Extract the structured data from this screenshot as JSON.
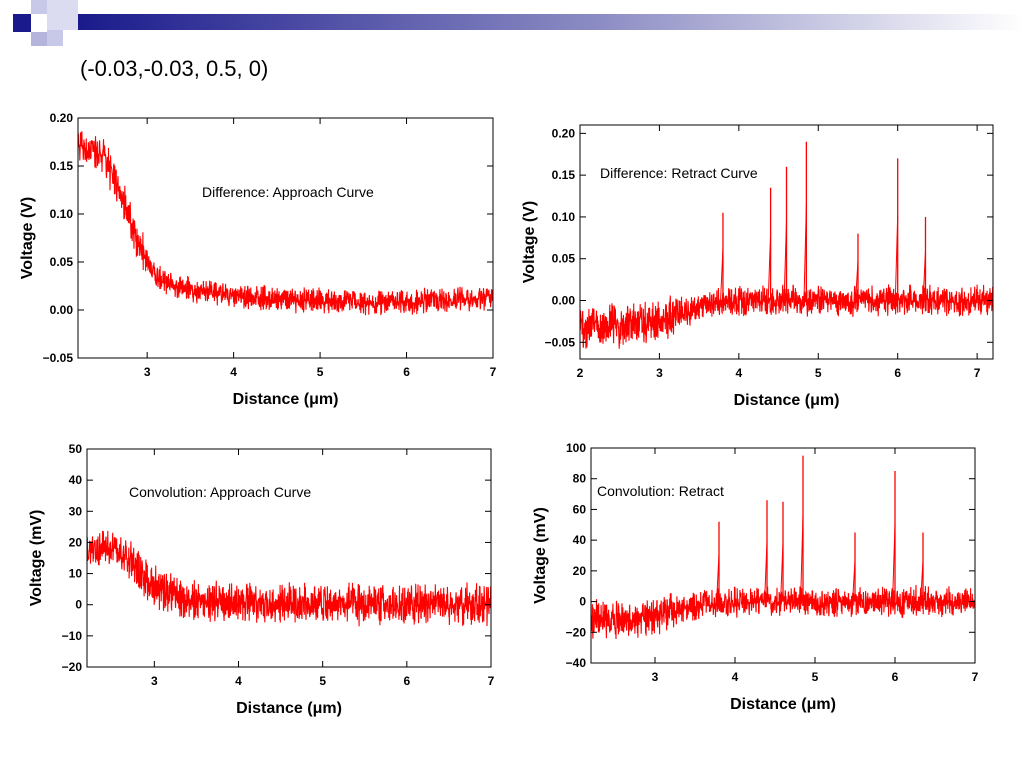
{
  "slide": {
    "title": "(-0.03,-0.03, 0.5, 0)",
    "accent_color": "#1a1a8c"
  },
  "chart_data": [
    {
      "type": "line",
      "annotation": "Difference: Approach Curve",
      "xlabel": "Distance (μm)",
      "ylabel": "Voltage (V)",
      "xlim": [
        2.2,
        7
      ],
      "ylim": [
        -0.05,
        0.2
      ],
      "xticks": [
        3,
        4,
        5,
        6,
        7
      ],
      "yticks": [
        -0.05,
        0.0,
        0.05,
        0.1,
        0.15,
        0.2
      ],
      "ytick_labels": [
        "−0.05",
        "0.00",
        "0.05",
        "0.10",
        "0.15",
        "0.20"
      ],
      "color": "#ff0000",
      "x": [
        2.2,
        2.5,
        2.7,
        2.9,
        3.1,
        3.3,
        3.6,
        4.0,
        4.5,
        5.0,
        5.5,
        6.0,
        6.5,
        7.0
      ],
      "y": [
        0.17,
        0.16,
        0.12,
        0.07,
        0.035,
        0.025,
        0.02,
        0.015,
        0.012,
        0.01,
        0.008,
        0.008,
        0.01,
        0.012
      ]
    },
    {
      "type": "line",
      "annotation": "Difference: Retract Curve",
      "xlabel": "Distance (μm)",
      "ylabel": "Voltage (V)",
      "xlim": [
        2,
        7.2
      ],
      "ylim": [
        -0.07,
        0.21
      ],
      "xticks": [
        2,
        3,
        4,
        5,
        6,
        7
      ],
      "yticks": [
        -0.05,
        0.0,
        0.05,
        0.1,
        0.15,
        0.2
      ],
      "ytick_labels": [
        "−0.05",
        "0.00",
        "0.05",
        "0.10",
        "0.15",
        "0.20"
      ],
      "color": "#ff0000",
      "x": [
        2.0,
        2.5,
        3.0,
        3.3,
        3.6,
        4.0,
        4.5,
        5.0,
        5.5,
        6.0,
        6.5,
        7.0,
        7.2
      ],
      "y": [
        -0.03,
        -0.03,
        -0.025,
        -0.015,
        -0.005,
        0.0,
        0.0,
        0.0,
        0.0,
        0.0,
        0.0,
        0.0,
        0.0
      ],
      "spikes": [
        [
          3.8,
          0.105
        ],
        [
          4.4,
          0.135
        ],
        [
          4.6,
          0.16
        ],
        [
          4.85,
          0.19
        ],
        [
          5.5,
          0.08
        ],
        [
          6.0,
          0.17
        ],
        [
          6.35,
          0.1
        ]
      ]
    },
    {
      "type": "line",
      "annotation": "Convolution: Approach Curve",
      "xlabel": "Distance (μm)",
      "ylabel": "Voltage (mV)",
      "xlim": [
        2.2,
        7
      ],
      "ylim": [
        -20,
        50
      ],
      "xticks": [
        3,
        4,
        5,
        6,
        7
      ],
      "yticks": [
        -20,
        -10,
        0,
        10,
        20,
        30,
        40,
        50
      ],
      "ytick_labels": [
        "−20",
        "−10",
        "0",
        "10",
        "20",
        "30",
        "40",
        "50"
      ],
      "color": "#ff0000",
      "x": [
        2.2,
        2.5,
        2.7,
        2.9,
        3.1,
        3.3,
        3.6,
        4.0,
        4.5,
        5.0,
        5.5,
        6.0,
        6.5,
        7.0
      ],
      "y": [
        18,
        18,
        15,
        8,
        4,
        2,
        1,
        1,
        0.5,
        0.5,
        0,
        0,
        0,
        0
      ]
    },
    {
      "type": "line",
      "annotation": "Convolution: Retract",
      "xlabel": "Distance (μm)",
      "ylabel": "Voltage (mV)",
      "xlim": [
        2.2,
        7
      ],
      "ylim": [
        -40,
        100
      ],
      "xticks": [
        3,
        4,
        5,
        6,
        7
      ],
      "yticks": [
        -40,
        -20,
        0,
        20,
        40,
        60,
        80,
        100
      ],
      "ytick_labels": [
        "−40",
        "−20",
        "0",
        "20",
        "40",
        "60",
        "80",
        "100"
      ],
      "color": "#ff0000",
      "x": [
        2.2,
        2.5,
        3.0,
        3.3,
        3.6,
        4.0,
        4.5,
        5.0,
        5.5,
        6.0,
        6.5,
        7.0
      ],
      "y": [
        -12,
        -12,
        -10,
        -5,
        -2,
        0,
        0,
        0,
        0,
        0,
        0,
        0
      ],
      "spikes": [
        [
          3.8,
          52
        ],
        [
          4.4,
          66
        ],
        [
          4.6,
          65
        ],
        [
          4.85,
          95
        ],
        [
          5.5,
          45
        ],
        [
          6.0,
          85
        ],
        [
          6.35,
          45
        ]
      ]
    }
  ]
}
